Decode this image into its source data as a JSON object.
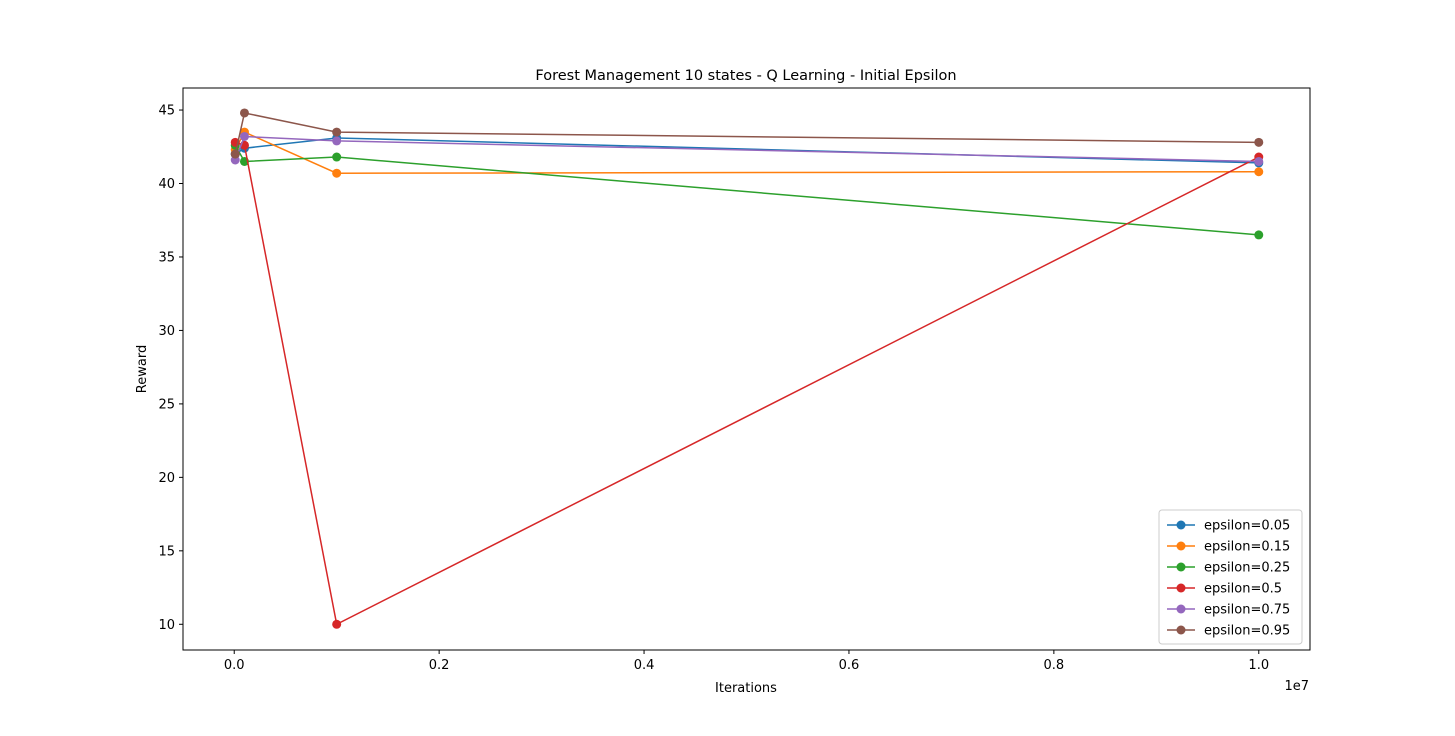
{
  "chart_data": {
    "type": "line",
    "title": "Forest Management 10 states - Q Learning - Initial Epsilon",
    "xlabel": "Iterations",
    "ylabel": "Reward",
    "x_offset_label": "1e7",
    "x_scale": 10000000,
    "xlim": [
      -500000,
      10500000
    ],
    "ylim": [
      8.25,
      46.5
    ],
    "x_ticks": [
      0,
      2000000,
      4000000,
      6000000,
      8000000,
      10000000
    ],
    "x_tick_labels": [
      "0.0",
      "0.2",
      "0.4",
      "0.6",
      "0.8",
      "1.0"
    ],
    "y_ticks": [
      10,
      15,
      20,
      25,
      30,
      35,
      40,
      45
    ],
    "y_tick_labels": [
      "10",
      "15",
      "20",
      "25",
      "30",
      "35",
      "40",
      "45"
    ],
    "grid": false,
    "legend_position": "bottom-right",
    "x": [
      10000,
      100000,
      1000000,
      10000000
    ],
    "series": [
      {
        "name": "epsilon=0.05",
        "color": "#1f77b4",
        "values": [
          42.0,
          42.4,
          43.1,
          41.4
        ]
      },
      {
        "name": "epsilon=0.15",
        "color": "#ff7f0e",
        "values": [
          42.3,
          43.5,
          40.7,
          40.8
        ]
      },
      {
        "name": "epsilon=0.25",
        "color": "#2ca02c",
        "values": [
          42.6,
          41.5,
          41.8,
          36.5
        ]
      },
      {
        "name": "epsilon=0.5",
        "color": "#d62728",
        "values": [
          42.8,
          42.6,
          10.0,
          41.8
        ]
      },
      {
        "name": "epsilon=0.75",
        "color": "#9467bd",
        "values": [
          41.6,
          43.2,
          42.9,
          41.5
        ]
      },
      {
        "name": "epsilon=0.95",
        "color": "#8c564b",
        "values": [
          42.0,
          44.8,
          43.5,
          42.8
        ]
      }
    ]
  }
}
